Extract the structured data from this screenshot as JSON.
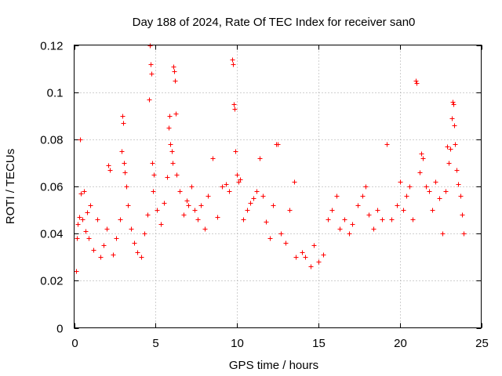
{
  "chart_data": {
    "type": "scatter",
    "title": "Day 188 of 2024, Rate Of TEC Index for receiver san0",
    "xlabel": "GPS time / hours",
    "ylabel": "ROTI / TECUs",
    "xlim": [
      0,
      25
    ],
    "ylim": [
      0,
      0.12
    ],
    "xticks": [
      0,
      5,
      10,
      15,
      20,
      25
    ],
    "xtick_labels": [
      "0",
      "5",
      "10",
      "15",
      "20",
      "25"
    ],
    "yticks": [
      0,
      0.02,
      0.04,
      0.06,
      0.08,
      0.1,
      0.12
    ],
    "ytick_labels": [
      "0",
      "0.02",
      "0.04",
      "0.06",
      "0.08",
      "0.1",
      "0.12"
    ],
    "grid": true,
    "marker": "+",
    "color": "#ff0000",
    "series": [
      {
        "name": "ROTI",
        "points": [
          [
            0.1,
            0.024
          ],
          [
            0.15,
            0.038
          ],
          [
            0.2,
            0.044
          ],
          [
            0.3,
            0.047
          ],
          [
            0.35,
            0.08
          ],
          [
            0.4,
            0.057
          ],
          [
            0.5,
            0.046
          ],
          [
            0.6,
            0.058
          ],
          [
            0.7,
            0.041
          ],
          [
            0.8,
            0.049
          ],
          [
            0.9,
            0.038
          ],
          [
            1.0,
            0.052
          ],
          [
            1.2,
            0.033
          ],
          [
            1.4,
            0.046
          ],
          [
            1.6,
            0.03
          ],
          [
            1.8,
            0.035
          ],
          [
            2.0,
            0.042
          ],
          [
            2.1,
            0.069
          ],
          [
            2.2,
            0.067
          ],
          [
            2.4,
            0.031
          ],
          [
            2.6,
            0.038
          ],
          [
            2.8,
            0.046
          ],
          [
            2.9,
            0.075
          ],
          [
            2.95,
            0.09
          ],
          [
            3.0,
            0.087
          ],
          [
            3.05,
            0.07
          ],
          [
            3.1,
            0.066
          ],
          [
            3.2,
            0.06
          ],
          [
            3.3,
            0.052
          ],
          [
            3.5,
            0.042
          ],
          [
            3.7,
            0.036
          ],
          [
            3.9,
            0.032
          ],
          [
            4.1,
            0.03
          ],
          [
            4.3,
            0.04
          ],
          [
            4.5,
            0.048
          ],
          [
            4.6,
            0.097
          ],
          [
            4.65,
            0.12
          ],
          [
            4.7,
            0.112
          ],
          [
            4.75,
            0.108
          ],
          [
            4.8,
            0.07
          ],
          [
            4.85,
            0.058
          ],
          [
            4.9,
            0.065
          ],
          [
            5.1,
            0.05
          ],
          [
            5.3,
            0.044
          ],
          [
            5.5,
            0.053
          ],
          [
            5.7,
            0.064
          ],
          [
            5.8,
            0.085
          ],
          [
            5.85,
            0.09
          ],
          [
            5.9,
            0.078
          ],
          [
            6.0,
            0.075
          ],
          [
            6.05,
            0.07
          ],
          [
            6.1,
            0.111
          ],
          [
            6.15,
            0.109
          ],
          [
            6.2,
            0.105
          ],
          [
            6.25,
            0.091
          ],
          [
            6.3,
            0.065
          ],
          [
            6.5,
            0.058
          ],
          [
            6.7,
            0.048
          ],
          [
            6.9,
            0.054
          ],
          [
            7.0,
            0.052
          ],
          [
            7.2,
            0.06
          ],
          [
            7.4,
            0.05
          ],
          [
            7.6,
            0.046
          ],
          [
            7.8,
            0.052
          ],
          [
            8.0,
            0.042
          ],
          [
            8.2,
            0.056
          ],
          [
            8.5,
            0.072
          ],
          [
            8.8,
            0.047
          ],
          [
            9.1,
            0.06
          ],
          [
            9.3,
            0.061
          ],
          [
            9.5,
            0.058
          ],
          [
            9.7,
            0.114
          ],
          [
            9.75,
            0.112
          ],
          [
            9.8,
            0.095
          ],
          [
            9.85,
            0.093
          ],
          [
            9.9,
            0.075
          ],
          [
            10.0,
            0.065
          ],
          [
            10.1,
            0.062
          ],
          [
            10.2,
            0.063
          ],
          [
            10.4,
            0.046
          ],
          [
            10.6,
            0.05
          ],
          [
            10.8,
            0.053
          ],
          [
            11.0,
            0.055
          ],
          [
            11.2,
            0.058
          ],
          [
            11.4,
            0.072
          ],
          [
            11.6,
            0.056
          ],
          [
            11.8,
            0.045
          ],
          [
            12.0,
            0.038
          ],
          [
            12.2,
            0.052
          ],
          [
            12.4,
            0.078
          ],
          [
            12.5,
            0.078
          ],
          [
            12.7,
            0.04
          ],
          [
            13.0,
            0.036
          ],
          [
            13.2,
            0.05
          ],
          [
            13.5,
            0.062
          ],
          [
            13.6,
            0.03
          ],
          [
            14.0,
            0.032
          ],
          [
            14.2,
            0.03
          ],
          [
            14.5,
            0.026
          ],
          [
            14.7,
            0.035
          ],
          [
            15.0,
            0.028
          ],
          [
            15.3,
            0.031
          ],
          [
            15.6,
            0.046
          ],
          [
            15.8,
            0.05
          ],
          [
            16.1,
            0.056
          ],
          [
            16.3,
            0.042
          ],
          [
            16.6,
            0.046
          ],
          [
            16.9,
            0.04
          ],
          [
            17.1,
            0.044
          ],
          [
            17.4,
            0.052
          ],
          [
            17.7,
            0.056
          ],
          [
            17.9,
            0.06
          ],
          [
            18.1,
            0.048
          ],
          [
            18.4,
            0.042
          ],
          [
            18.6,
            0.05
          ],
          [
            18.9,
            0.046
          ],
          [
            19.2,
            0.078
          ],
          [
            19.5,
            0.046
          ],
          [
            19.8,
            0.052
          ],
          [
            20.0,
            0.062
          ],
          [
            20.2,
            0.05
          ],
          [
            20.4,
            0.056
          ],
          [
            20.6,
            0.06
          ],
          [
            20.8,
            0.046
          ],
          [
            21.0,
            0.105
          ],
          [
            21.05,
            0.104
          ],
          [
            21.2,
            0.066
          ],
          [
            21.3,
            0.074
          ],
          [
            21.4,
            0.072
          ],
          [
            21.6,
            0.06
          ],
          [
            21.8,
            0.058
          ],
          [
            22.0,
            0.05
          ],
          [
            22.2,
            0.062
          ],
          [
            22.4,
            0.055
          ],
          [
            22.6,
            0.04
          ],
          [
            22.8,
            0.058
          ],
          [
            22.9,
            0.077
          ],
          [
            23.0,
            0.07
          ],
          [
            23.1,
            0.076
          ],
          [
            23.2,
            0.089
          ],
          [
            23.25,
            0.096
          ],
          [
            23.3,
            0.095
          ],
          [
            23.35,
            0.086
          ],
          [
            23.4,
            0.078
          ],
          [
            23.5,
            0.067
          ],
          [
            23.6,
            0.061
          ],
          [
            23.7,
            0.056
          ],
          [
            23.8,
            0.048
          ],
          [
            23.9,
            0.04
          ]
        ]
      }
    ]
  }
}
